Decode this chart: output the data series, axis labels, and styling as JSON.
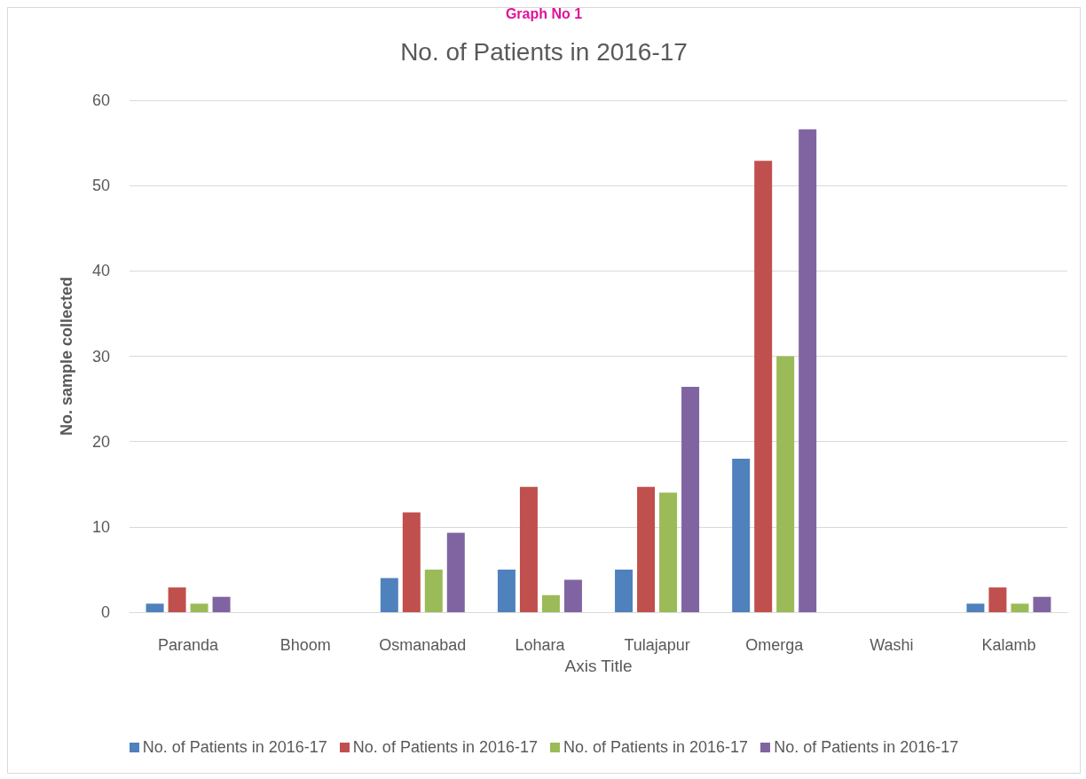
{
  "chart_data": {
    "type": "bar",
    "title": "No. of Patients in 2016-17",
    "xlabel": "Axis Title",
    "ylabel": "No. sample collected",
    "annotations": [
      "Graph No 1"
    ],
    "categories": [
      "Paranda",
      "Bhoom",
      "Osmanabad",
      "Lohara",
      "Tulajapur",
      "Omerga",
      "Washi",
      "Kalamb"
    ],
    "series": [
      {
        "name": "No. of Patients in 2016-17",
        "color": "#4f81bd",
        "values": [
          1,
          0,
          4,
          5,
          5,
          18,
          0,
          1
        ]
      },
      {
        "name": "No. of Patients in 2016-17",
        "color": "#c0504d",
        "values": [
          2.9,
          0,
          11.7,
          14.7,
          14.7,
          52.9,
          0,
          2.9
        ]
      },
      {
        "name": "No. of Patients in 2016-17",
        "color": "#9bbb59",
        "values": [
          1,
          0,
          5,
          2,
          14,
          30,
          0,
          1
        ]
      },
      {
        "name": "No. of Patients in 2016-17",
        "color": "#8064a2",
        "values": [
          1.8,
          0,
          9.3,
          3.8,
          26.4,
          56.6,
          0,
          1.8
        ]
      }
    ],
    "ylim": [
      0,
      60
    ],
    "yticks": [
      0,
      10,
      20,
      30,
      40,
      50,
      60
    ],
    "grid": "y",
    "legend": "bottom"
  }
}
